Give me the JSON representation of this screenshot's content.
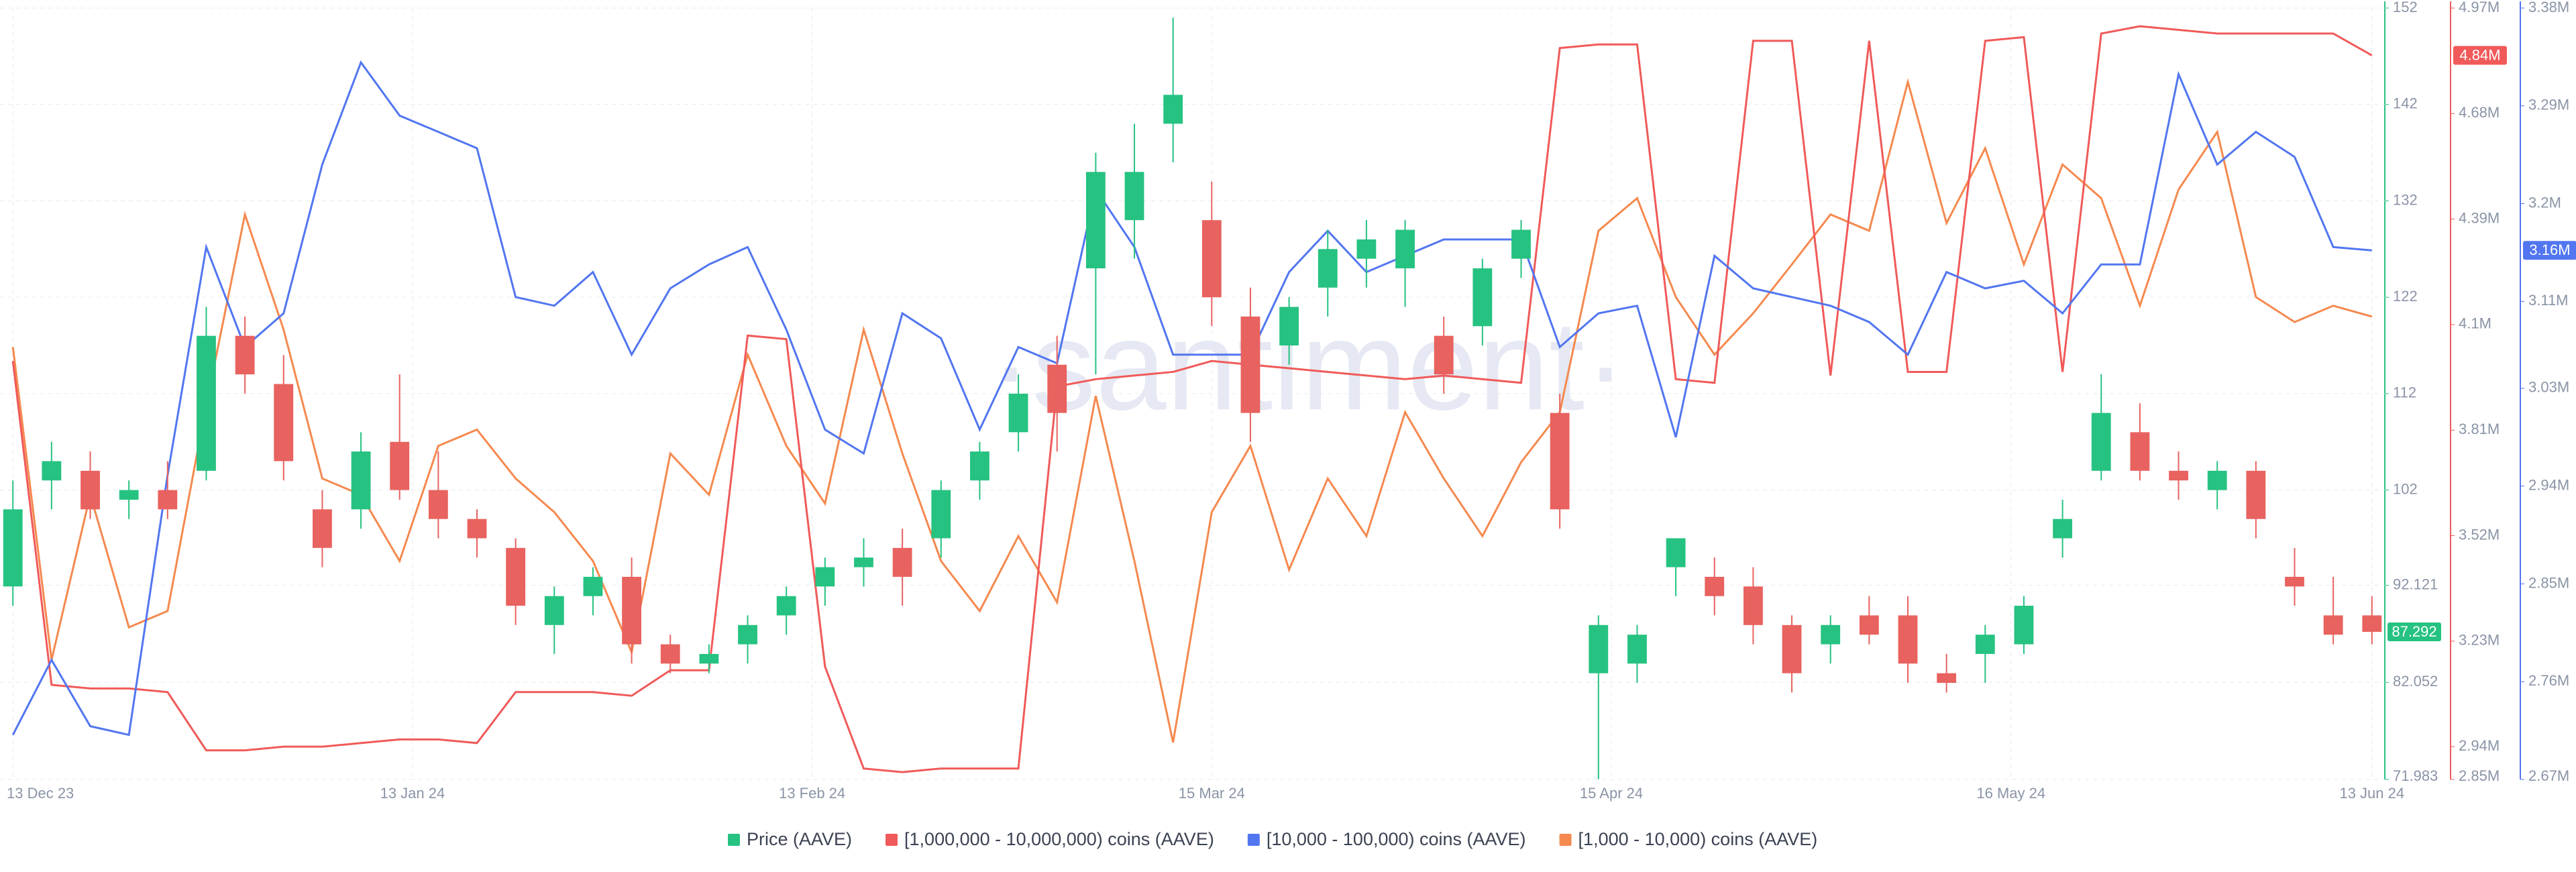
{
  "chart_data": {
    "type": "candlestick",
    "watermark": "·santiment·",
    "x": [
      "2023-12-13",
      "2023-12-16",
      "2023-12-19",
      "2023-12-22",
      "2023-12-25",
      "2023-12-28",
      "2023-12-31",
      "2024-01-03",
      "2024-01-06",
      "2024-01-09",
      "2024-01-12",
      "2024-01-15",
      "2024-01-18",
      "2024-01-21",
      "2024-01-24",
      "2024-01-27",
      "2024-01-30",
      "2024-02-02",
      "2024-02-05",
      "2024-02-08",
      "2024-02-11",
      "2024-02-14",
      "2024-02-17",
      "2024-02-20",
      "2024-02-23",
      "2024-02-26",
      "2024-02-29",
      "2024-03-03",
      "2024-03-06",
      "2024-03-09",
      "2024-03-12",
      "2024-03-15",
      "2024-03-18",
      "2024-03-21",
      "2024-03-24",
      "2024-03-27",
      "2024-03-30",
      "2024-04-02",
      "2024-04-05",
      "2024-04-08",
      "2024-04-11",
      "2024-04-14",
      "2024-04-17",
      "2024-04-20",
      "2024-04-23",
      "2024-04-26",
      "2024-04-29",
      "2024-05-02",
      "2024-05-05",
      "2024-05-08",
      "2024-05-11",
      "2024-05-14",
      "2024-05-17",
      "2024-05-20",
      "2024-05-23",
      "2024-05-26",
      "2024-05-29",
      "2024-06-01",
      "2024-06-04",
      "2024-06-07",
      "2024-06-10",
      "2024-06-13"
    ],
    "xlim": [
      "2023-12-12",
      "2024-06-14"
    ],
    "xticks": [
      {
        "value": "2023-12-13",
        "label": "13 Dec 23"
      },
      {
        "value": "2024-01-13",
        "label": "13 Jan 24"
      },
      {
        "value": "2024-02-13",
        "label": "13 Feb 24"
      },
      {
        "value": "2024-03-15",
        "label": "15 Mar 24"
      },
      {
        "value": "2024-04-15",
        "label": "15 Apr 24"
      },
      {
        "value": "2024-05-16",
        "label": "16 May 24"
      },
      {
        "value": "2024-06-13",
        "label": "13 Jun 24"
      }
    ],
    "ylim": [
      71.983,
      152
    ],
    "yticks": [
      71.983,
      82.052,
      92.121,
      102,
      112,
      122,
      132,
      142,
      152
    ],
    "y2lim": [
      2850000,
      4970000
    ],
    "y2ticks": [
      {
        "value": 2850000,
        "label": "2.85M"
      },
      {
        "value": 2940000,
        "label": "2.94M"
      },
      {
        "value": 3230000,
        "label": "3.23M"
      },
      {
        "value": 3520000,
        "label": "3.52M"
      },
      {
        "value": 3810000,
        "label": "3.81M"
      },
      {
        "value": 4100000,
        "label": "4.1M"
      },
      {
        "value": 4390000,
        "label": "4.39M"
      },
      {
        "value": 4680000,
        "label": "4.68M"
      },
      {
        "value": 4970000,
        "label": "4.97M"
      }
    ],
    "y3lim": [
      2670000,
      3380000
    ],
    "y3ticks": [
      {
        "value": 2670000,
        "label": "2.67M"
      },
      {
        "value": 2760000,
        "label": "2.76M"
      },
      {
        "value": 2850000,
        "label": "2.85M"
      },
      {
        "value": 2940000,
        "label": "2.94M"
      },
      {
        "value": 3030000,
        "label": "3.03M"
      },
      {
        "value": 3110000,
        "label": "3.11M"
      },
      {
        "value": 3200000,
        "label": "3.2M"
      },
      {
        "value": 3290000,
        "label": "3.29M"
      },
      {
        "value": 3380000,
        "label": "3.38M"
      }
    ],
    "grid": true,
    "series": [
      {
        "name": "Price (AAVE)",
        "type": "candlestick",
        "axis": "y",
        "color": "#26c281",
        "up_color": "#26c281",
        "down_color": "#e8625f",
        "open": [
          92,
          103,
          104,
          101,
          102,
          104,
          118,
          113,
          100,
          100,
          107,
          102,
          99,
          96,
          88,
          91,
          93,
          86,
          84,
          86,
          89,
          92,
          94,
          96,
          97,
          103,
          108,
          115,
          125,
          130,
          140,
          130,
          120,
          117,
          123,
          126,
          125,
          118,
          119,
          126,
          110,
          83,
          84,
          94,
          93,
          92,
          88,
          86,
          89,
          89,
          83,
          85,
          86,
          97,
          104,
          108,
          104,
          102,
          104,
          93,
          89,
          89
        ],
        "high": [
          103,
          107,
          106,
          103,
          105,
          121,
          120,
          116,
          102,
          108,
          114,
          106,
          100,
          97,
          92,
          94,
          95,
          87,
          86,
          89,
          92,
          95,
          97,
          98,
          103,
          107,
          114,
          118,
          137,
          140,
          151,
          134,
          123,
          122,
          129,
          130,
          130,
          120,
          126,
          130,
          112,
          89,
          88,
          97,
          95,
          94,
          89,
          89,
          91,
          91,
          85,
          88,
          91,
          101,
          114,
          111,
          106,
          105,
          105,
          96,
          93,
          91
        ],
        "low": [
          90,
          100,
          99,
          99,
          99,
          103,
          112,
          103,
          94,
          98,
          101,
          97,
          95,
          88,
          85,
          89,
          84,
          83,
          83,
          84,
          87,
          90,
          92,
          90,
          95,
          101,
          106,
          106,
          114,
          126,
          136,
          119,
          107,
          115,
          120,
          123,
          121,
          112,
          117,
          124,
          98,
          72,
          82,
          91,
          89,
          86,
          81,
          84,
          86,
          82,
          81,
          82,
          85,
          95,
          103,
          103,
          101,
          100,
          97,
          90,
          86,
          86
        ],
        "close": [
          100,
          105,
          100,
          102,
          100,
          118,
          114,
          105,
          96,
          106,
          102,
          99,
          97,
          90,
          91,
          93,
          86,
          84,
          85,
          88,
          91,
          94,
          95,
          93,
          102,
          106,
          112,
          110,
          135,
          135,
          143,
          122,
          110,
          121,
          127,
          128,
          129,
          114,
          125,
          129,
          100,
          88,
          87,
          97,
          91,
          88,
          83,
          88,
          87,
          84,
          82,
          87,
          90,
          99,
          110,
          104,
          103,
          104,
          99,
          92,
          87,
          87.292
        ]
      },
      {
        "name": "[1,000,000 - 10,000,000) coins (AAVE)",
        "type": "line",
        "axis": "y2",
        "color": "#f05a5a",
        "current_label": "4.84M",
        "values": [
          4000000,
          3110000,
          3100000,
          3100000,
          3090000,
          2930000,
          2930000,
          2940000,
          2940000,
          2950000,
          2960000,
          2960000,
          2950000,
          3090000,
          3090000,
          3090000,
          3080000,
          3150000,
          3150000,
          4070000,
          4060000,
          3160000,
          2880000,
          2870000,
          2880000,
          2880000,
          2880000,
          3930000,
          3950000,
          3960000,
          3970000,
          4000000,
          3990000,
          3980000,
          3970000,
          3960000,
          3950000,
          3960000,
          3950000,
          3940000,
          4860000,
          4870000,
          4870000,
          3950000,
          3940000,
          4880000,
          4880000,
          3960000,
          4880000,
          3970000,
          3970000,
          4880000,
          4890000,
          3970000,
          4900000,
          4920000,
          4910000,
          4900000,
          4900000,
          4900000,
          4900000,
          4840000
        ]
      },
      {
        "name": "[10,000 - 100,000) coins (AAVE)",
        "type": "line",
        "axis": "y3",
        "color": "#5276f0",
        "current_label": "3.16M",
        "values": [
          2711000,
          2780000,
          2719000,
          2711000,
          2950000,
          3160000,
          3068000,
          3099000,
          3236000,
          3330000,
          3281000,
          3266000,
          3251000,
          3114000,
          3106000,
          3137000,
          3061000,
          3122000,
          3144000,
          3160000,
          3084000,
          2992000,
          2970000,
          3099000,
          3076000,
          2992000,
          3068000,
          3053000,
          3213000,
          3160000,
          3061000,
          3061000,
          3061000,
          3137000,
          3175000,
          3137000,
          3152000,
          3167000,
          3167000,
          3167000,
          3068000,
          3099000,
          3106000,
          2985000,
          3152000,
          3122000,
          3114000,
          3106000,
          3091000,
          3061000,
          3137000,
          3122000,
          3129000,
          3099000,
          3144000,
          3144000,
          3319000,
          3236000,
          3266000,
          3243000,
          3160000,
          3157000
        ]
      },
      {
        "name": "[1,000 - 10,000) coins (AAVE)",
        "type": "line",
        "axis": "y3",
        "color": "#f5894f",
        "values": [
          3068000,
          2780000,
          2932000,
          2810000,
          2825000,
          3015000,
          3190000,
          3084000,
          2947000,
          2932000,
          2871000,
          2977000,
          2992000,
          2947000,
          2916000,
          2871000,
          2787000,
          2970000,
          2932000,
          3061000,
          2977000,
          2924000,
          3084000,
          2970000,
          2871000,
          2825000,
          2894000,
          2833000,
          3023000,
          2871000,
          2704000,
          2916000,
          2977000,
          2863000,
          2947000,
          2894000,
          3008000,
          2947000,
          2894000,
          2962000,
          3008000,
          3175000,
          3205000,
          3114000,
          3061000,
          3099000,
          3144000,
          3190000,
          3175000,
          3312000,
          3182000,
          3251000,
          3144000,
          3236000,
          3205000,
          3106000,
          3213000,
          3266000,
          3114000,
          3091000,
          3106000,
          3096000
        ]
      }
    ]
  }
}
